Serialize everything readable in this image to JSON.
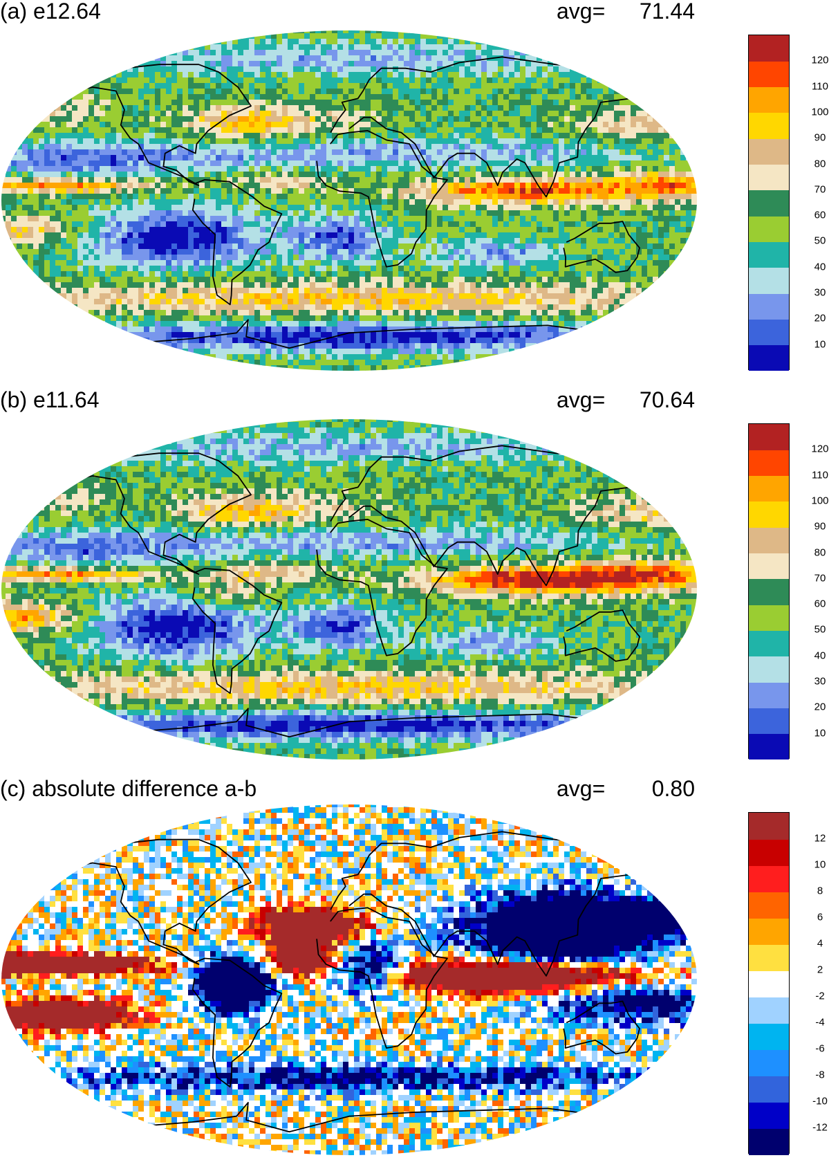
{
  "panels": [
    {
      "title": "(a) e12.64",
      "avg_label": "avg=",
      "avg_value": "71.44",
      "colorbar": {
        "colors": [
          "#0a0ab4",
          "#3c64dc",
          "#7896ec",
          "#b4e0e6",
          "#20b4a8",
          "#9acd32",
          "#2e8b57",
          "#f5e6c4",
          "#deb887",
          "#ffd700",
          "#ffa500",
          "#ff4500",
          "#b22222"
        ],
        "labels": [
          "10",
          "20",
          "30",
          "40",
          "50",
          "60",
          "70",
          "80",
          "90",
          "100",
          "110",
          "120"
        ]
      }
    },
    {
      "title": "(b) e11.64",
      "avg_label": "avg=",
      "avg_value": "70.64",
      "colorbar": {
        "colors": [
          "#0a0ab4",
          "#3c64dc",
          "#7896ec",
          "#b4e0e6",
          "#20b4a8",
          "#9acd32",
          "#2e8b57",
          "#f5e6c4",
          "#deb887",
          "#ffd700",
          "#ffa500",
          "#ff4500",
          "#b22222"
        ],
        "labels": [
          "10",
          "20",
          "30",
          "40",
          "50",
          "60",
          "70",
          "80",
          "90",
          "100",
          "110",
          "120"
        ]
      }
    },
    {
      "title": "(c) absolute difference a-b",
      "avg_label": "avg=",
      "avg_value": "0.80",
      "colorbar": {
        "colors": [
          "#00006e",
          "#0000c8",
          "#3264dc",
          "#1e90ff",
          "#00b4f0",
          "#a0d2ff",
          "#ffffff",
          "#ffe040",
          "#ffa500",
          "#ff6400",
          "#ff1e1e",
          "#c80000",
          "#a52a2a"
        ],
        "labels": [
          "-12",
          "-10",
          "-8",
          "-6",
          "-4",
          "-2",
          "2",
          "4",
          "6",
          "8",
          "10",
          "12"
        ]
      }
    }
  ],
  "chart_data": [
    {
      "type": "heatmap",
      "title": "(a) e12.64",
      "annotation": "avg= 71.44",
      "projection": "Robinson world map",
      "levels": [
        10,
        20,
        30,
        40,
        50,
        60,
        70,
        80,
        90,
        100,
        110,
        120
      ]
    },
    {
      "type": "heatmap",
      "title": "(b) e11.64",
      "annotation": "avg= 70.64",
      "projection": "Robinson world map",
      "levels": [
        10,
        20,
        30,
        40,
        50,
        60,
        70,
        80,
        90,
        100,
        110,
        120
      ]
    },
    {
      "type": "heatmap",
      "title": "(c) absolute difference a-b",
      "annotation": "avg= 0.80",
      "projection": "Robinson world map",
      "levels": [
        -12,
        -10,
        -8,
        -6,
        -4,
        -2,
        2,
        4,
        6,
        8,
        10,
        12
      ]
    }
  ]
}
